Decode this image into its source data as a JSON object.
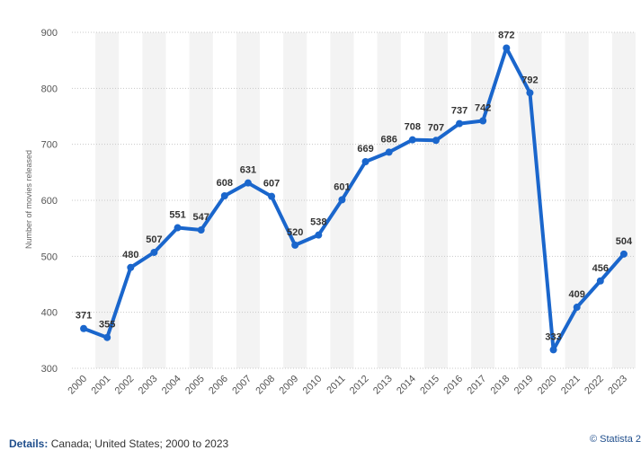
{
  "chart_data": {
    "type": "line",
    "x": [
      "2000",
      "2001",
      "2002",
      "2003",
      "2004",
      "2005",
      "2006",
      "2007",
      "2008",
      "2009",
      "2010",
      "2011",
      "2012",
      "2013",
      "2014",
      "2015",
      "2016",
      "2017",
      "2018",
      "2019",
      "2020",
      "2021",
      "2022",
      "2023"
    ],
    "series": [
      {
        "values": [
          371,
          355,
          480,
          507,
          551,
          547,
          608,
          631,
          607,
          520,
          538,
          601,
          669,
          686,
          708,
          707,
          737,
          742,
          872,
          792,
          333,
          409,
          456,
          504
        ]
      }
    ],
    "title": "",
    "xlabel": "",
    "ylabel": "Number of movies released",
    "ylim": [
      300,
      900
    ],
    "yticks": [
      300,
      400,
      500,
      600,
      700,
      800,
      900
    ],
    "grid": "horizontal dotted",
    "line_color": "#1a66cc",
    "band_color": "#f3f3f3"
  },
  "footer": {
    "details_label": "Details:",
    "details_text": "Canada; United States; 2000 to 2023",
    "credit": "© Statista 2"
  }
}
